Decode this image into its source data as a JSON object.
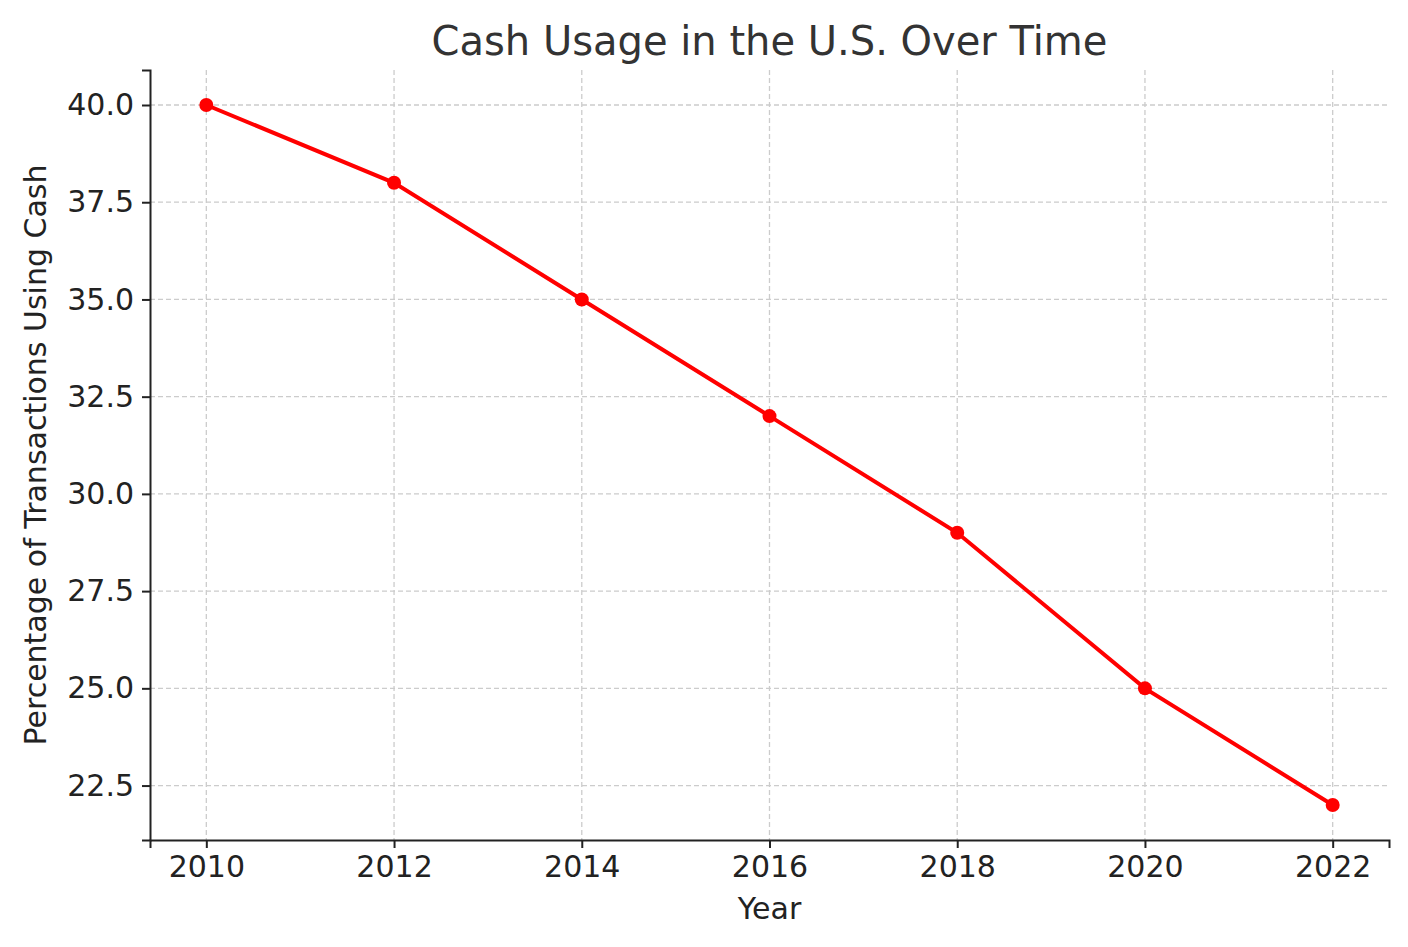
{
  "chart_data": {
    "type": "line",
    "title": "Cash Usage in the U.S. Over Time",
    "x_label": "Year",
    "y_label": "Percentage of Transactions Using Cash",
    "x": [
      2010,
      2012,
      2014,
      2016,
      2018,
      2020,
      2022
    ],
    "values": [
      40,
      38,
      35,
      32,
      29,
      25,
      22
    ],
    "color": "#ff0000",
    "marker": "circle",
    "line_style": "solid",
    "xlim": [
      2009.4,
      2022.6
    ],
    "xticks": [
      2010,
      2012,
      2014,
      2016,
      2018,
      2020,
      2022
    ],
    "ylim": [
      21.1,
      40.9
    ],
    "yticks": [
      22.5,
      {
        "value": 25,
        "label": "25.0"
      },
      27.5,
      {
        "value": 30,
        "label": "30.0"
      },
      32.5,
      {
        "value": 35,
        "label": "35.0"
      },
      37.5,
      {
        "value": 40,
        "label": "40.0"
      }
    ],
    "grid": true
  }
}
